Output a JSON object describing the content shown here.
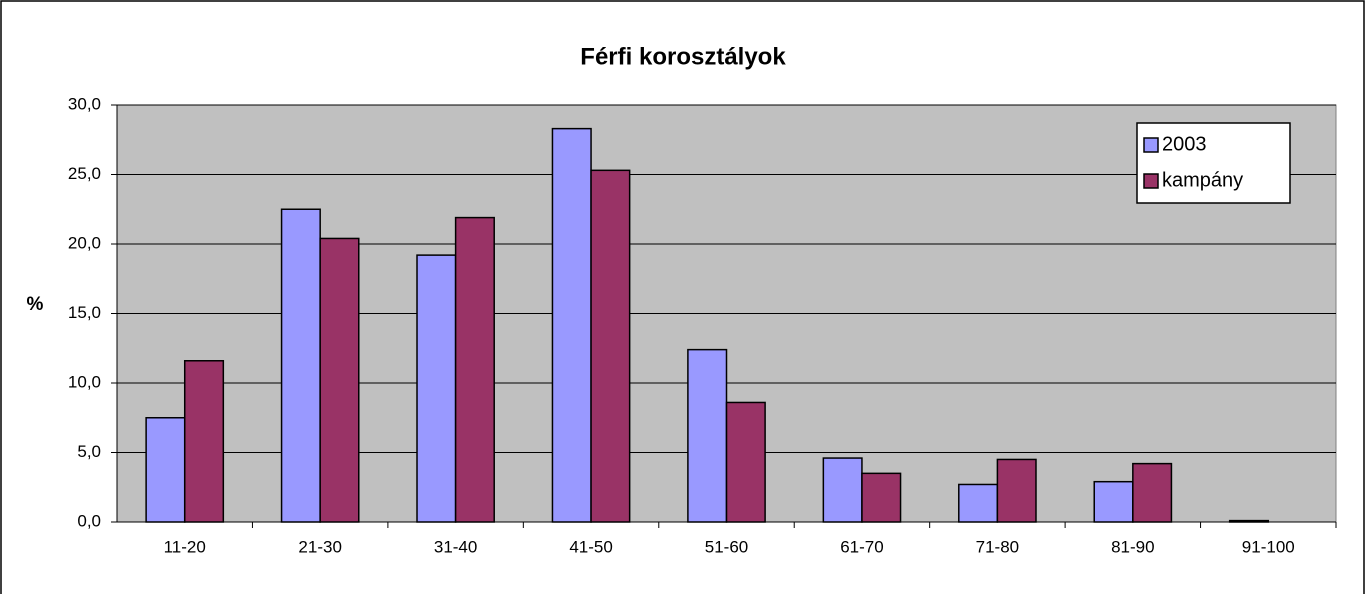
{
  "chart_data": {
    "type": "bar",
    "title": "Férfi korosztályok",
    "y_label": "%",
    "categories": [
      "11-20",
      "21-30",
      "31-40",
      "41-50",
      "51-60",
      "61-70",
      "71-80",
      "81-90",
      "91-100"
    ],
    "series": [
      {
        "name": "2003",
        "color": "#9999ff",
        "values": [
          7.5,
          22.5,
          19.2,
          28.3,
          12.4,
          4.6,
          2.7,
          2.9,
          0.1
        ]
      },
      {
        "name": "kampány",
        "color": "#993366",
        "values": [
          11.6,
          20.4,
          21.9,
          25.3,
          8.6,
          3.5,
          4.5,
          4.2,
          0
        ]
      }
    ],
    "ylim": [
      0,
      30
    ],
    "yticks": [
      {
        "value": 0,
        "label": "0,0"
      },
      {
        "value": 5,
        "label": "5,0"
      },
      {
        "value": 10,
        "label": "10,0"
      },
      {
        "value": 15,
        "label": "15,0"
      },
      {
        "value": 20,
        "label": "20,0"
      },
      {
        "value": 25,
        "label": "25,0"
      },
      {
        "value": 30,
        "label": "30,0"
      }
    ],
    "grid": true,
    "legend": "upper right"
  }
}
